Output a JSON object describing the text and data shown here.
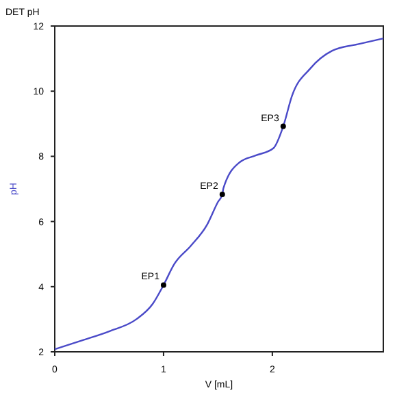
{
  "chart_data": {
    "type": "line",
    "title": "DET pH",
    "xlabel": "V [mL]",
    "ylabel": "pH",
    "xlim": [
      0,
      3.02
    ],
    "ylim": [
      2,
      12
    ],
    "xticks": [
      0,
      1,
      2
    ],
    "yticks": [
      2,
      4,
      6,
      8,
      10,
      12
    ],
    "grid": false,
    "marker": "none",
    "line_style": "solid",
    "series": [
      {
        "color": "#4a4ac8",
        "x": [
          0,
          0.25,
          0.5,
          0.75,
          0.9,
          1.0,
          1.1,
          1.25,
          1.4,
          1.5,
          1.54,
          1.55,
          1.7,
          1.85,
          2.01,
          2.1,
          2.18,
          2.35,
          2.55,
          2.8,
          3.02
        ],
        "values": [
          2.08,
          2.35,
          2.63,
          3.0,
          3.47,
          4.05,
          4.7,
          5.25,
          5.9,
          6.6,
          6.83,
          7.02,
          7.82,
          8.03,
          8.25,
          8.92,
          9.85,
          10.7,
          11.24,
          11.45,
          11.62
        ]
      },
      {
        "type": "scatter",
        "color": "#000000",
        "marker": "circle",
        "x": [
          1.0,
          1.54,
          2.1
        ],
        "values": [
          4.05,
          6.83,
          8.92
        ]
      }
    ],
    "annotations": [
      {
        "text": "EP1",
        "x": 1.0,
        "y": 4.05
      },
      {
        "text": "EP2",
        "x": 1.54,
        "y": 6.83
      },
      {
        "text": "EP3",
        "x": 2.1,
        "y": 8.92
      }
    ]
  }
}
